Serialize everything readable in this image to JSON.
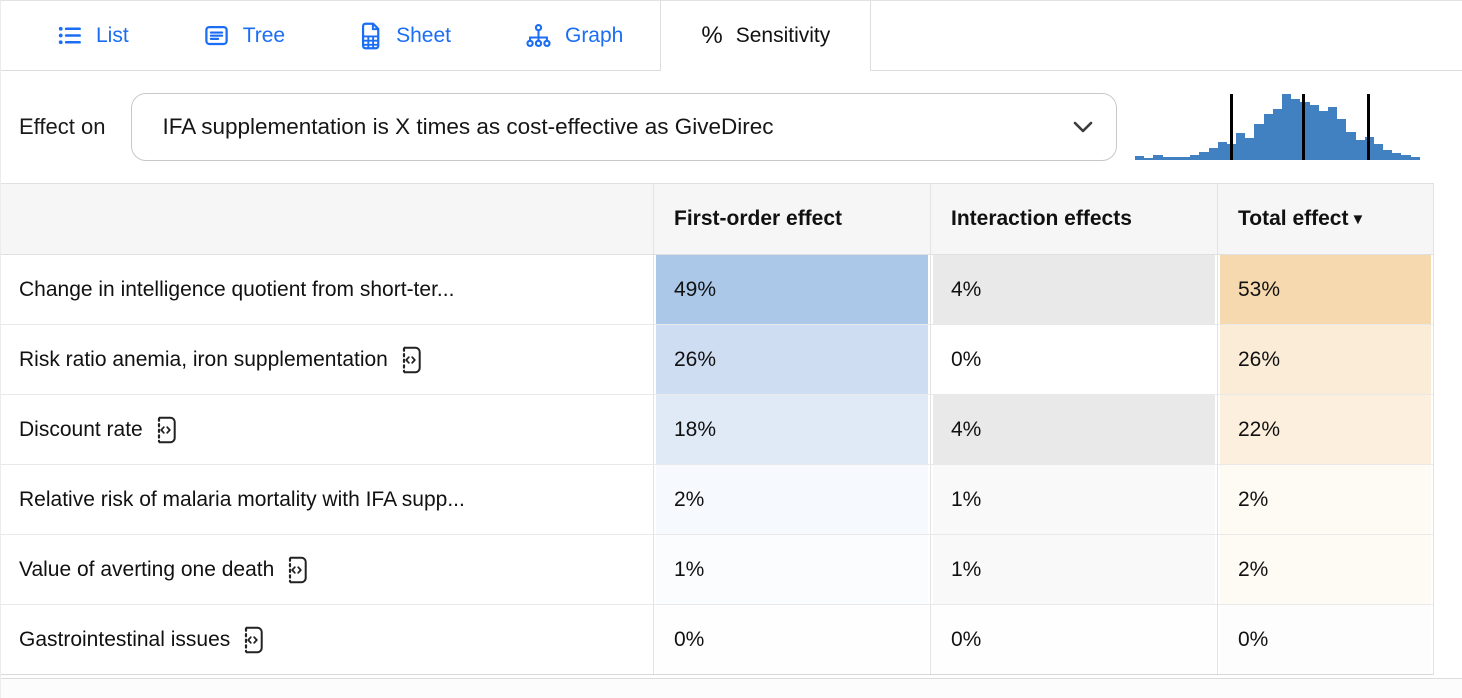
{
  "colors": {
    "tab_accent": "#1b6ef3",
    "histogram_bar": "#4181c2",
    "histogram_marker": "#000000",
    "header_bg": "#f6f6f6"
  },
  "tabs": [
    {
      "label": "List",
      "icon": "list-icon",
      "active": false
    },
    {
      "label": "Tree",
      "icon": "tree-icon",
      "active": false
    },
    {
      "label": "Sheet",
      "icon": "sheet-icon",
      "active": false
    },
    {
      "label": "Graph",
      "icon": "graph-icon",
      "active": false
    },
    {
      "label": "Sensitivity",
      "icon": "percent-icon",
      "active": true
    }
  ],
  "effect_on": {
    "label": "Effect on",
    "selected_value": "IFA supplementation is X times as cost-effective as GiveDirec"
  },
  "histogram": {
    "bars": [
      0.06,
      0.03,
      0.07,
      0.05,
      0.04,
      0.05,
      0.08,
      0.12,
      0.18,
      0.28,
      0.24,
      0.41,
      0.33,
      0.55,
      0.69,
      0.78,
      1.0,
      0.92,
      0.88,
      0.84,
      0.74,
      0.8,
      0.62,
      0.42,
      0.3,
      0.35,
      0.24,
      0.15,
      0.1,
      0.07,
      0.05
    ],
    "marker_positions_pct": [
      33.5,
      58.6,
      81.5
    ]
  },
  "table": {
    "headers": {
      "label": "",
      "first_order": "First-order effect",
      "interaction": "Interaction effects",
      "total": "Total effect",
      "total_sort_indicator": "▼"
    },
    "rows": [
      {
        "label": "Change in intelligence quotient from short-ter...",
        "has_icon": false,
        "first_order": {
          "value": "49%",
          "bg": "#abc8e9"
        },
        "interaction": {
          "value": "4%",
          "bg": "#e9e9e9"
        },
        "total": {
          "value": "53%",
          "bg": "#f6d9ae"
        }
      },
      {
        "label": "Risk ratio anemia, iron supplementation",
        "has_icon": true,
        "first_order": {
          "value": "26%",
          "bg": "#cfddf2"
        },
        "interaction": {
          "value": "0%",
          "bg": "#ffffff"
        },
        "total": {
          "value": "26%",
          "bg": "#fbecd8"
        }
      },
      {
        "label": "Discount rate",
        "has_icon": true,
        "first_order": {
          "value": "18%",
          "bg": "#e0e9f6"
        },
        "interaction": {
          "value": "4%",
          "bg": "#e9e9e9"
        },
        "total": {
          "value": "22%",
          "bg": "#fcefdd"
        }
      },
      {
        "label": "Relative risk of malaria mortality with IFA supp...",
        "has_icon": false,
        "first_order": {
          "value": "2%",
          "bg": "#f6f9fd"
        },
        "interaction": {
          "value": "1%",
          "bg": "#f9f9f9"
        },
        "total": {
          "value": "2%",
          "bg": "#fefaf4"
        }
      },
      {
        "label": "Value of averting one death",
        "has_icon": true,
        "first_order": {
          "value": "1%",
          "bg": "#fbfcfe"
        },
        "interaction": {
          "value": "1%",
          "bg": "#f9f9f9"
        },
        "total": {
          "value": "2%",
          "bg": "#fefaf4"
        }
      },
      {
        "label": "Gastrointestinal issues",
        "has_icon": true,
        "first_order": {
          "value": "0%",
          "bg": "#fefefe"
        },
        "interaction": {
          "value": "0%",
          "bg": "#fefefe"
        },
        "total": {
          "value": "0%",
          "bg": "#fdfdfd"
        }
      }
    ]
  }
}
